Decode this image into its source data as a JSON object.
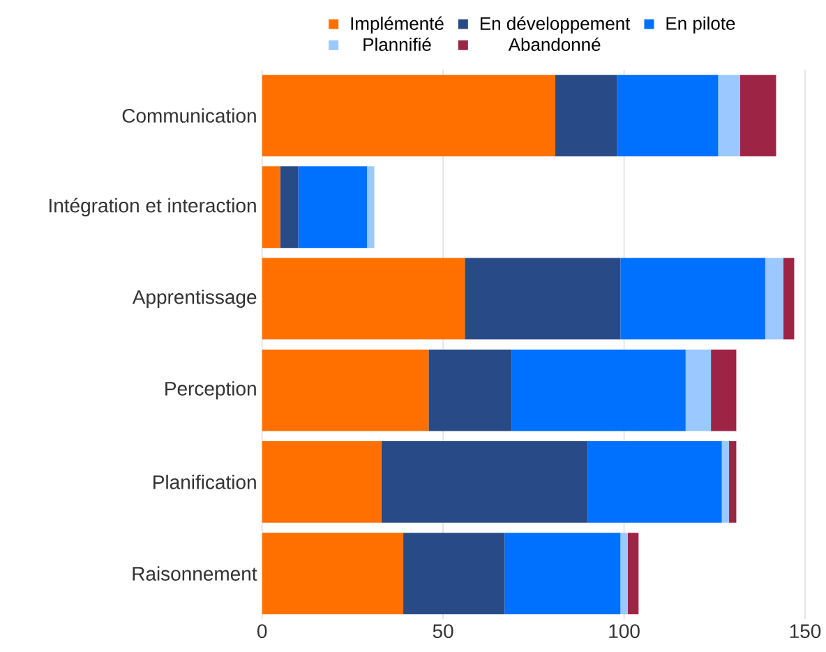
{
  "chart_data": {
    "type": "bar",
    "orientation": "horizontal",
    "stacked": true,
    "categories": [
      "Communication",
      "Intégration et interaction",
      "Apprentissage",
      "Perception",
      "Planification",
      "Raisonnement"
    ],
    "series": [
      {
        "name": "Implémenté",
        "color": "#ff7000",
        "values": [
          81,
          5,
          56,
          46,
          33,
          39
        ]
      },
      {
        "name": "En développement",
        "color": "#284b88",
        "values": [
          17,
          5,
          43,
          23,
          57,
          28
        ]
      },
      {
        "name": "En pilote",
        "color": "#0070ff",
        "values": [
          28,
          19,
          40,
          48,
          37,
          32
        ]
      },
      {
        "name": "Plannifié",
        "color": "#9ac8ff",
        "values": [
          6,
          2,
          5,
          7,
          2,
          2
        ]
      },
      {
        "name": "Abandonné",
        "color": "#9e2445",
        "values": [
          10,
          0,
          3,
          7,
          2,
          3
        ]
      }
    ],
    "xlim": [
      0,
      150
    ],
    "xticks": [
      0,
      50,
      100,
      150
    ],
    "grid": "x",
    "legend": "top"
  }
}
